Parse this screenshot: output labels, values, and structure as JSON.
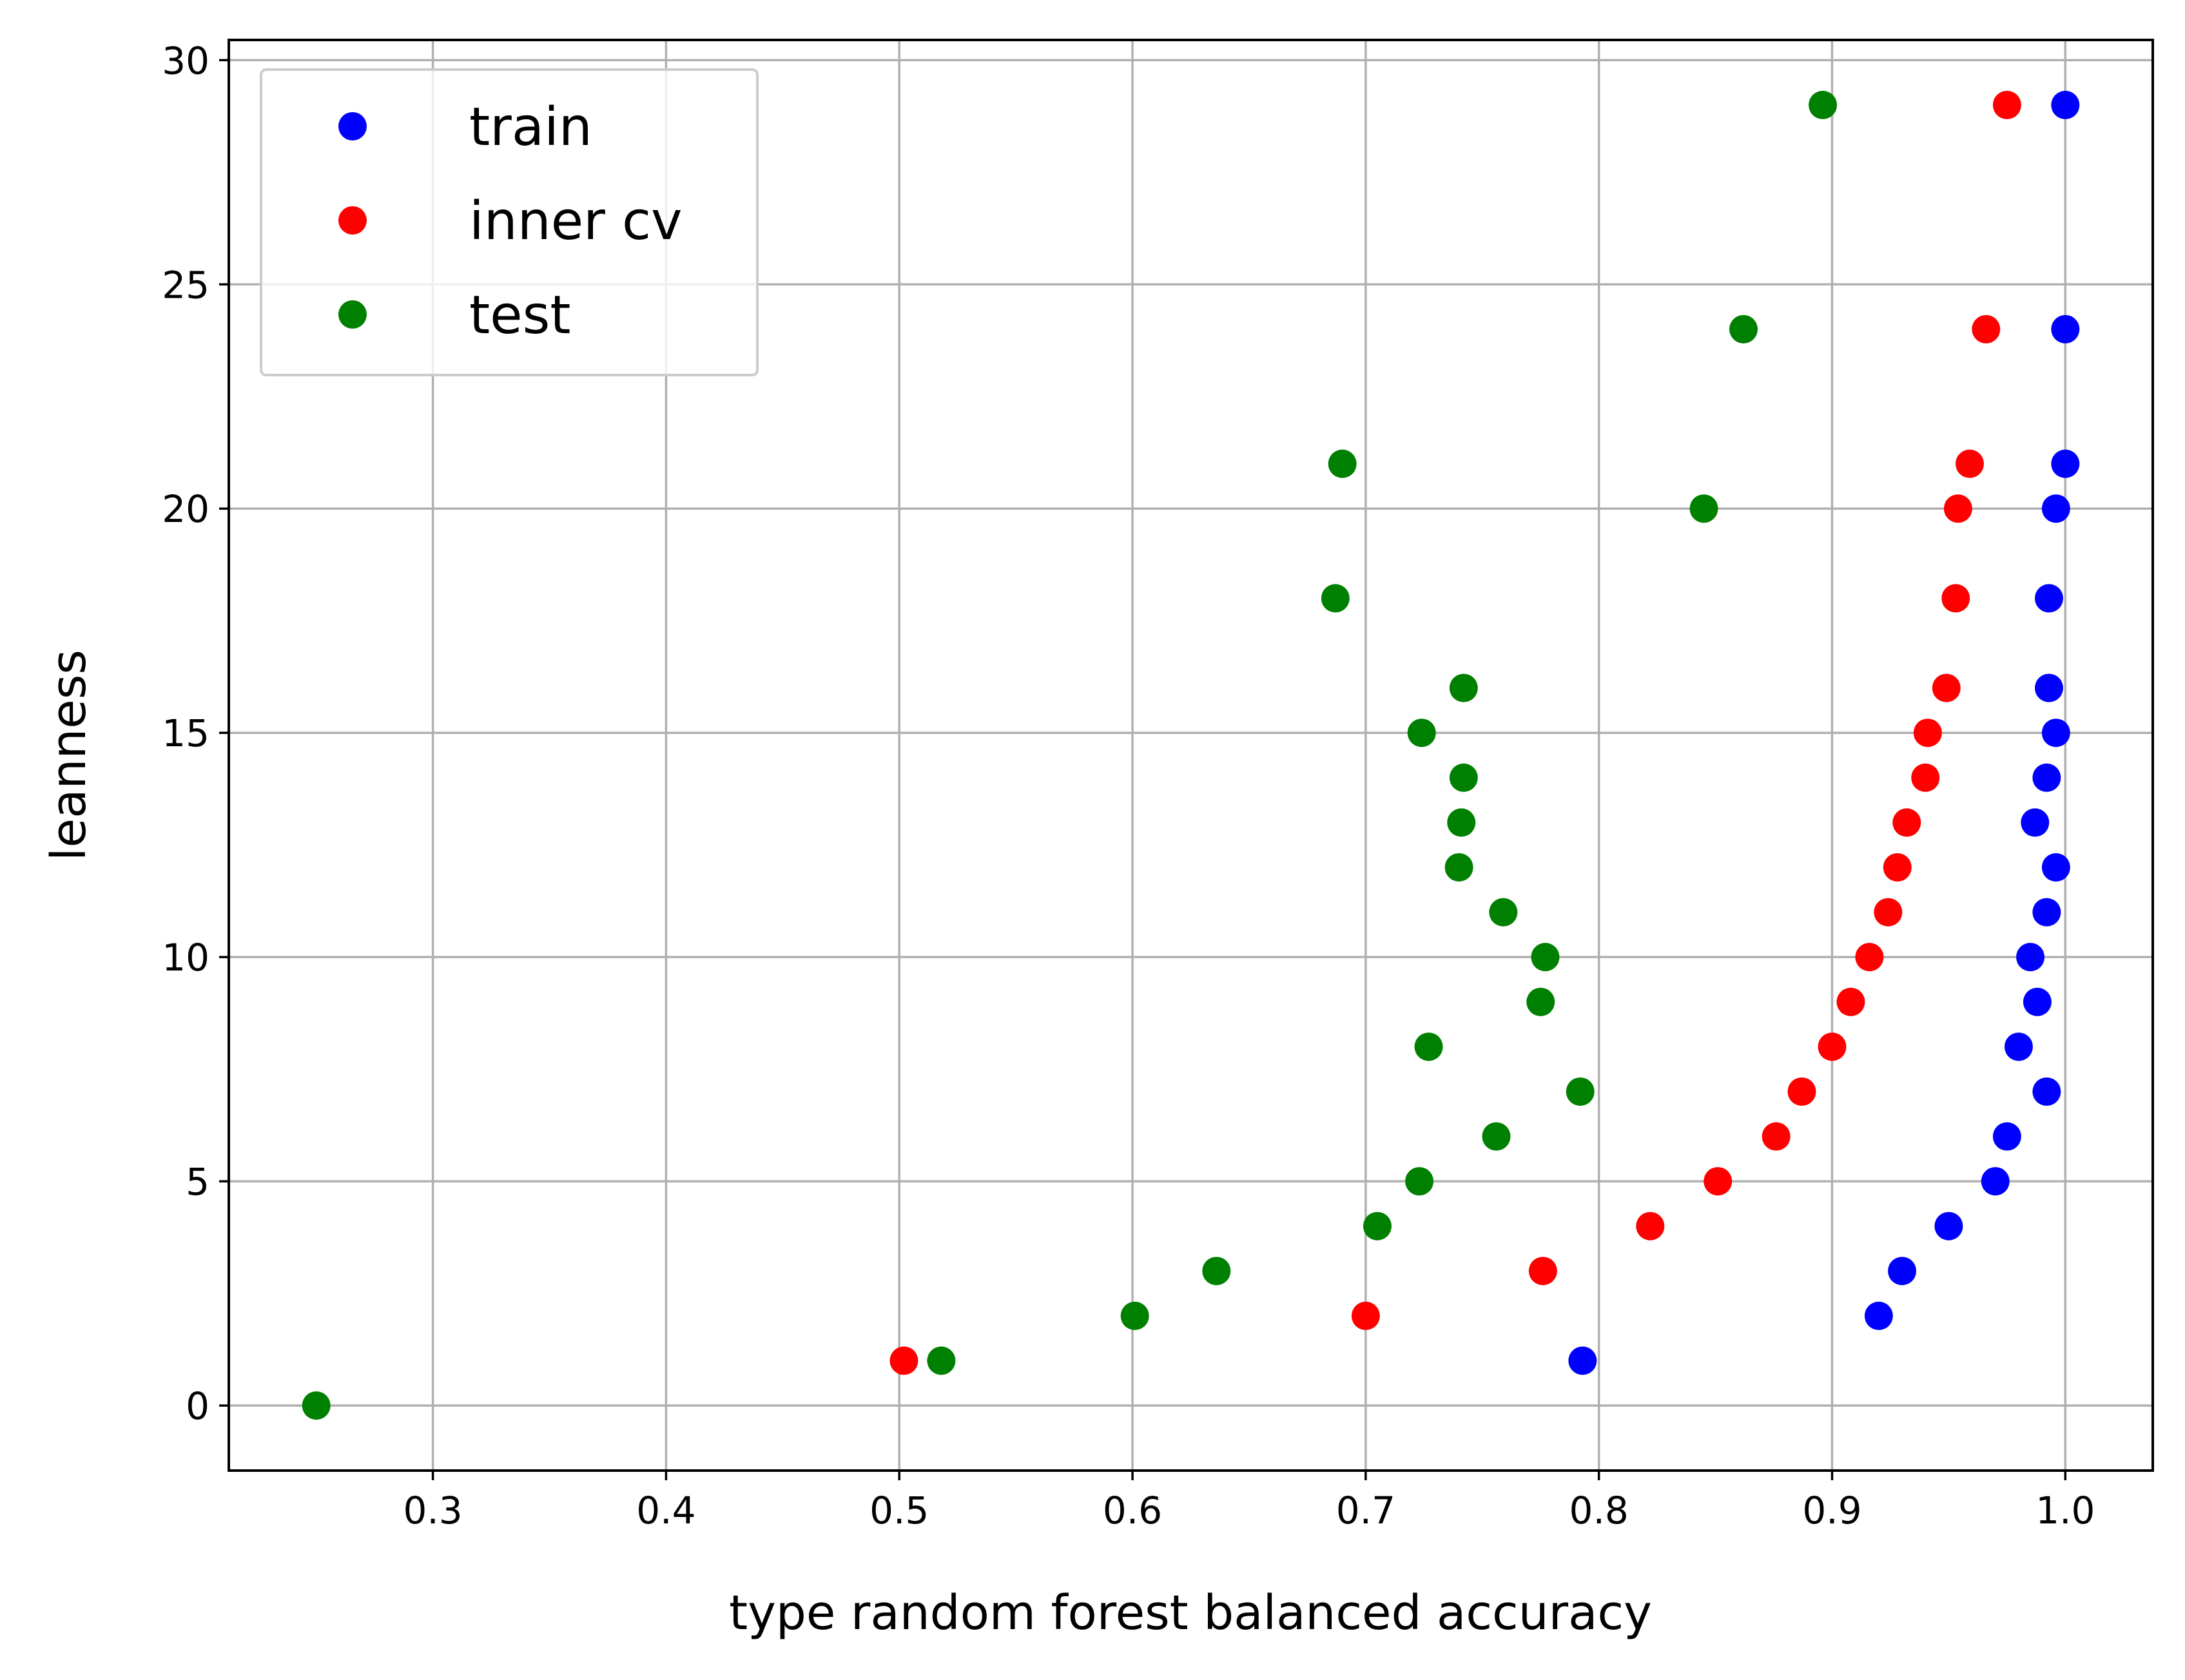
{
  "chart_data": {
    "type": "scatter",
    "title": "",
    "xlabel": "type random forest balanced accuracy",
    "ylabel": "leanness",
    "xlim": [
      0.2125,
      1.0375
    ],
    "ylim": [
      -1.45,
      30.45
    ],
    "x_ticks": [
      "0.3",
      "0.4",
      "0.5",
      "0.6",
      "0.7",
      "0.8",
      "0.9",
      "1.0"
    ],
    "y_ticks": [
      "0",
      "5",
      "10",
      "15",
      "20",
      "25",
      "30"
    ],
    "grid": true,
    "legend_position": "top-left",
    "series": [
      {
        "name": "train",
        "color": "#0000ff",
        "points": [
          [
            0.793,
            1
          ],
          [
            0.92,
            2
          ],
          [
            0.93,
            3
          ],
          [
            0.95,
            4
          ],
          [
            0.97,
            5
          ],
          [
            0.975,
            6
          ],
          [
            0.992,
            7
          ],
          [
            0.98,
            8
          ],
          [
            0.988,
            9
          ],
          [
            0.985,
            10
          ],
          [
            0.992,
            11
          ],
          [
            0.996,
            12
          ],
          [
            0.987,
            13
          ],
          [
            0.992,
            14
          ],
          [
            0.996,
            15
          ],
          [
            0.993,
            16
          ],
          [
            0.993,
            18
          ],
          [
            0.996,
            20
          ],
          [
            1.0,
            21
          ],
          [
            1.0,
            24
          ],
          [
            1.0,
            29
          ]
        ]
      },
      {
        "name": "inner cv",
        "color": "#ff0000",
        "points": [
          [
            0.502,
            1
          ],
          [
            0.7,
            2
          ],
          [
            0.776,
            3
          ],
          [
            0.822,
            4
          ],
          [
            0.851,
            5
          ],
          [
            0.876,
            6
          ],
          [
            0.887,
            7
          ],
          [
            0.9,
            8
          ],
          [
            0.908,
            9
          ],
          [
            0.916,
            10
          ],
          [
            0.924,
            11
          ],
          [
            0.928,
            12
          ],
          [
            0.932,
            13
          ],
          [
            0.94,
            14
          ],
          [
            0.941,
            15
          ],
          [
            0.949,
            16
          ],
          [
            0.953,
            18
          ],
          [
            0.954,
            20
          ],
          [
            0.959,
            21
          ],
          [
            0.966,
            24
          ],
          [
            0.975,
            29
          ]
        ]
      },
      {
        "name": "test",
        "color": "#008000",
        "points": [
          [
            0.25,
            0
          ],
          [
            0.518,
            1
          ],
          [
            0.601,
            2
          ],
          [
            0.636,
            3
          ],
          [
            0.705,
            4
          ],
          [
            0.723,
            5
          ],
          [
            0.756,
            6
          ],
          [
            0.792,
            7
          ],
          [
            0.727,
            8
          ],
          [
            0.775,
            9
          ],
          [
            0.777,
            10
          ],
          [
            0.759,
            11
          ],
          [
            0.74,
            12
          ],
          [
            0.741,
            13
          ],
          [
            0.742,
            14
          ],
          [
            0.724,
            15
          ],
          [
            0.742,
            16
          ],
          [
            0.687,
            18
          ],
          [
            0.845,
            20
          ],
          [
            0.69,
            21
          ],
          [
            0.862,
            24
          ],
          [
            0.896,
            29
          ]
        ]
      }
    ]
  }
}
